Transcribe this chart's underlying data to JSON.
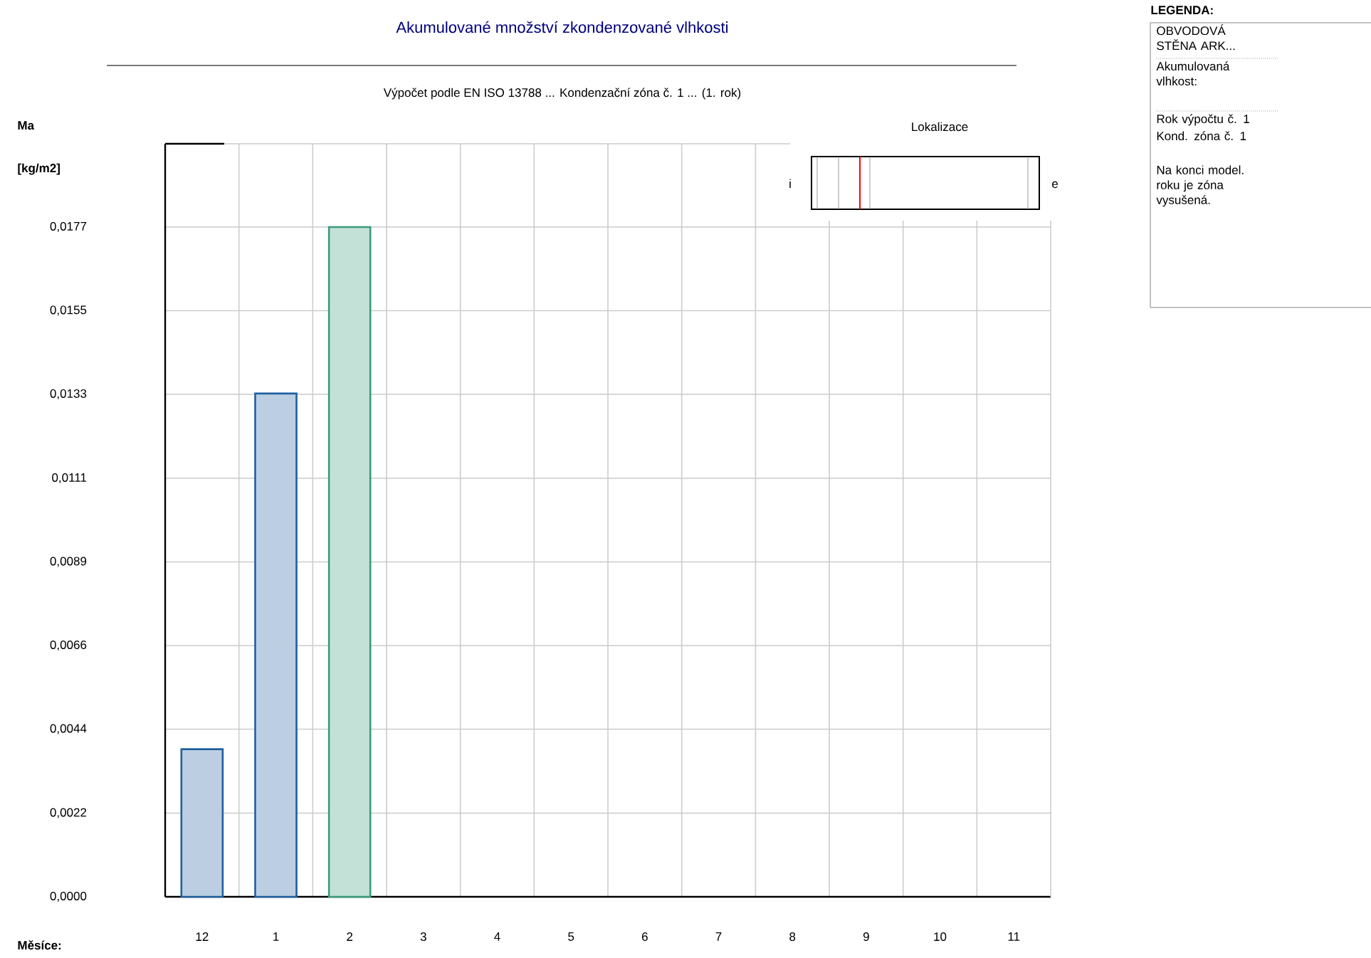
{
  "chart_data": {
    "type": "bar",
    "title": "Akumulované množství zkondenzované vlhkosti",
    "subtitle": "Výpočet podle EN ISO 13788 ... Kondenzační zóna č. 1 ... (1. rok)",
    "xlabel": "Měsíce:",
    "ylabel": "Ma",
    "categories": [
      "12",
      "1",
      "2",
      "3",
      "4",
      "5",
      "6",
      "7",
      "8",
      "9",
      "10",
      "11"
    ],
    "values": [
      0.0039,
      0.0133,
      0.0177,
      null,
      null,
      null,
      null,
      null,
      null,
      null,
      null,
      null
    ],
    "colors": [
      "#1f5f9f",
      "#1f5f9f",
      "#3a9a7a",
      null,
      null,
      null,
      null,
      null,
      null,
      null,
      null,
      null
    ],
    "ylim": [
      0,
      0.0199
    ],
    "yticks": [
      {
        "value": 0,
        "label": "0,0000"
      },
      {
        "value": 0.00221,
        "label": "0,0022"
      },
      {
        "value": 0.00443,
        "label": "0,0044"
      },
      {
        "value": 0.00664,
        "label": "0,0066"
      },
      {
        "value": 0.00885,
        "label": "0,0089"
      },
      {
        "value": 0.01106,
        "label": "0,0111"
      },
      {
        "value": 0.01328,
        "label": "0,0133"
      },
      {
        "value": 0.01549,
        "label": "0,0155"
      },
      {
        "value": 0.0177,
        "label": "0,0177"
      }
    ],
    "grid": true,
    "annotations": [
      "[kg/m2]",
      "Lokalizace",
      "i",
      "e",
      "LEGENDA:",
      "OBVODOVÁ STĚNA ARK...",
      "Akumulovaná vlhkost:",
      "Rok výpočtu č. 1",
      "Kond. zóna č. 1",
      "Na konci model. roku je zóna vysušená."
    ]
  }
}
